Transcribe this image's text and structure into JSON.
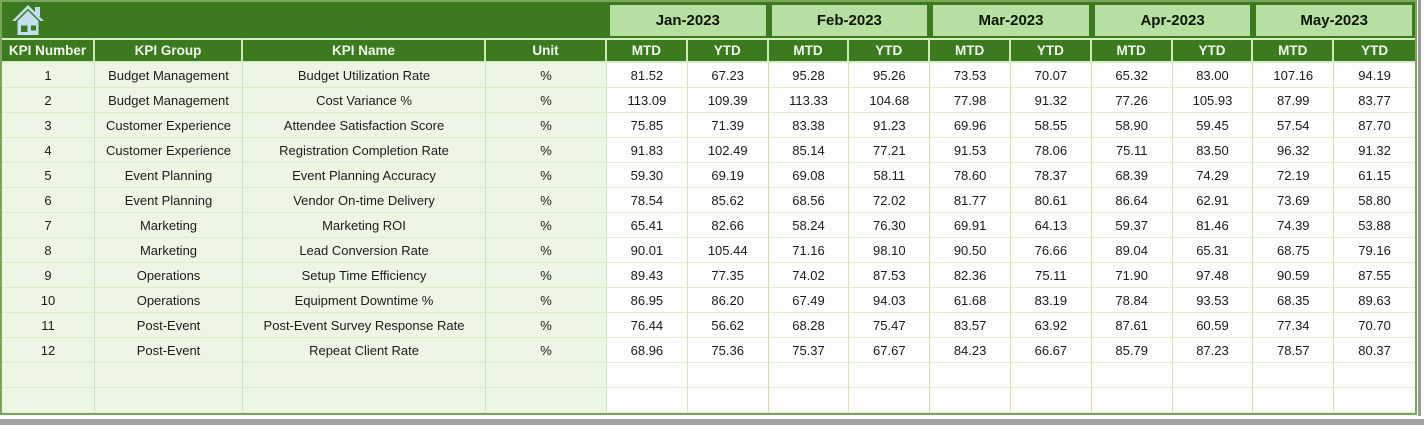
{
  "icons": {
    "home": "home-icon"
  },
  "colors": {
    "header_green": "#3b7a1e",
    "month_band_green": "#b7dfa1",
    "row_tint_green": "#edf6e5",
    "outer_border_green": "#7ca55b",
    "home_icon_blue": "#c5ddf0"
  },
  "table": {
    "column_headers": [
      "KPI Number",
      "KPI Group",
      "KPI Name",
      "Unit"
    ],
    "months": [
      "Jan-2023",
      "Feb-2023",
      "Mar-2023",
      "Apr-2023",
      "May-2023"
    ],
    "period_headers": [
      "MTD",
      "YTD"
    ],
    "empty_row_count": 2,
    "rows": [
      {
        "kpi_number": "1",
        "kpi_group": "Budget Management",
        "kpi_name": "Budget Utilization Rate",
        "unit": "%",
        "values": [
          "81.52",
          "67.23",
          "95.28",
          "95.26",
          "73.53",
          "70.07",
          "65.32",
          "83.00",
          "107.16",
          "94.19"
        ]
      },
      {
        "kpi_number": "2",
        "kpi_group": "Budget Management",
        "kpi_name": "Cost Variance %",
        "unit": "%",
        "values": [
          "113.09",
          "109.39",
          "113.33",
          "104.68",
          "77.98",
          "91.32",
          "77.26",
          "105.93",
          "87.99",
          "83.77"
        ]
      },
      {
        "kpi_number": "3",
        "kpi_group": "Customer Experience",
        "kpi_name": "Attendee Satisfaction Score",
        "unit": "%",
        "values": [
          "75.85",
          "71.39",
          "83.38",
          "91.23",
          "69.96",
          "58.55",
          "58.90",
          "59.45",
          "57.54",
          "87.70"
        ]
      },
      {
        "kpi_number": "4",
        "kpi_group": "Customer Experience",
        "kpi_name": "Registration Completion Rate",
        "unit": "%",
        "values": [
          "91.83",
          "102.49",
          "85.14",
          "77.21",
          "91.53",
          "78.06",
          "75.11",
          "83.50",
          "96.32",
          "91.32"
        ]
      },
      {
        "kpi_number": "5",
        "kpi_group": "Event Planning",
        "kpi_name": "Event Planning Accuracy",
        "unit": "%",
        "values": [
          "59.30",
          "69.19",
          "69.08",
          "58.11",
          "78.60",
          "78.37",
          "68.39",
          "74.29",
          "72.19",
          "61.15"
        ]
      },
      {
        "kpi_number": "6",
        "kpi_group": "Event Planning",
        "kpi_name": "Vendor On-time Delivery",
        "unit": "%",
        "values": [
          "78.54",
          "85.62",
          "68.56",
          "72.02",
          "81.77",
          "80.61",
          "86.64",
          "62.91",
          "73.69",
          "58.80"
        ]
      },
      {
        "kpi_number": "7",
        "kpi_group": "Marketing",
        "kpi_name": "Marketing ROI",
        "unit": "%",
        "values": [
          "65.41",
          "82.66",
          "58.24",
          "76.30",
          "69.91",
          "64.13",
          "59.37",
          "81.46",
          "74.39",
          "53.88"
        ]
      },
      {
        "kpi_number": "8",
        "kpi_group": "Marketing",
        "kpi_name": "Lead Conversion Rate",
        "unit": "%",
        "values": [
          "90.01",
          "105.44",
          "71.16",
          "98.10",
          "90.50",
          "76.66",
          "89.04",
          "65.31",
          "68.75",
          "79.16"
        ]
      },
      {
        "kpi_number": "9",
        "kpi_group": "Operations",
        "kpi_name": "Setup Time Efficiency",
        "unit": "%",
        "values": [
          "89.43",
          "77.35",
          "74.02",
          "87.53",
          "82.36",
          "75.11",
          "71.90",
          "97.48",
          "90.59",
          "87.55"
        ]
      },
      {
        "kpi_number": "10",
        "kpi_group": "Operations",
        "kpi_name": "Equipment Downtime %",
        "unit": "%",
        "values": [
          "86.95",
          "86.20",
          "67.49",
          "94.03",
          "61.68",
          "83.19",
          "78.84",
          "93.53",
          "68.35",
          "89.63"
        ]
      },
      {
        "kpi_number": "11",
        "kpi_group": "Post-Event",
        "kpi_name": "Post-Event Survey Response Rate",
        "unit": "%",
        "values": [
          "76.44",
          "56.62",
          "68.28",
          "75.47",
          "83.57",
          "63.92",
          "87.61",
          "60.59",
          "77.34",
          "70.70"
        ]
      },
      {
        "kpi_number": "12",
        "kpi_group": "Post-Event",
        "kpi_name": "Repeat Client Rate",
        "unit": "%",
        "values": [
          "68.96",
          "75.36",
          "75.37",
          "67.67",
          "84.23",
          "66.67",
          "85.79",
          "87.23",
          "78.57",
          "80.37"
        ]
      }
    ]
  }
}
